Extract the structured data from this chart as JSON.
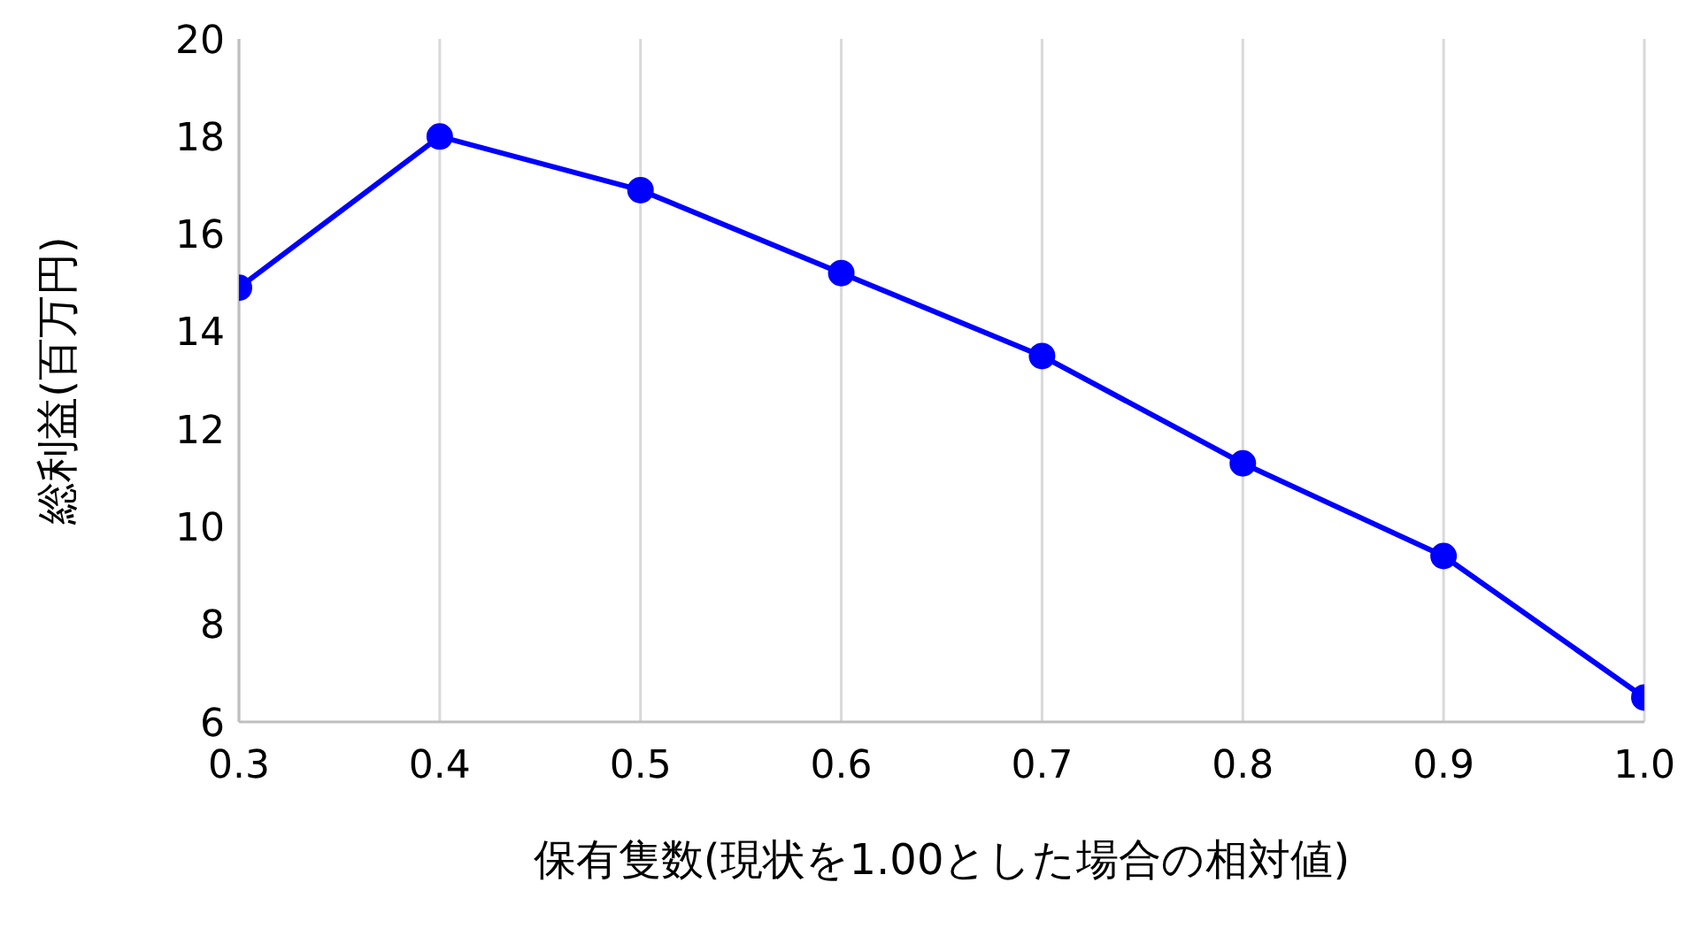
{
  "chart_data": {
    "type": "line",
    "xlabel": "保有隻数(現状を1.00とした場合の相対値)",
    "ylabel": "総利益(百万円)",
    "x": [
      0.3,
      0.4,
      0.5,
      0.6,
      0.7,
      0.8,
      0.9,
      1.0
    ],
    "series": [
      {
        "color": "#0000ff",
        "values": [
          14.9,
          18.0,
          16.9,
          15.2,
          13.5,
          11.3,
          9.4,
          6.5
        ]
      }
    ],
    "xlim": [
      0.3,
      1.0
    ],
    "xticks": [
      {
        "value": 0.3,
        "label": "0.3"
      },
      {
        "value": 0.4,
        "label": "0.4"
      },
      {
        "value": 0.5,
        "label": "0.5"
      },
      {
        "value": 0.6,
        "label": "0.6"
      },
      {
        "value": 0.7,
        "label": "0.7"
      },
      {
        "value": 0.8,
        "label": "0.8"
      },
      {
        "value": 0.9,
        "label": "0.9"
      },
      {
        "value": 1.0,
        "label": "1.0"
      }
    ],
    "ylim": [
      6,
      20
    ],
    "yticks": [
      6,
      8,
      10,
      12,
      14,
      16,
      18,
      20
    ],
    "grid": "x",
    "marker": "circle",
    "line_style": "solid"
  }
}
